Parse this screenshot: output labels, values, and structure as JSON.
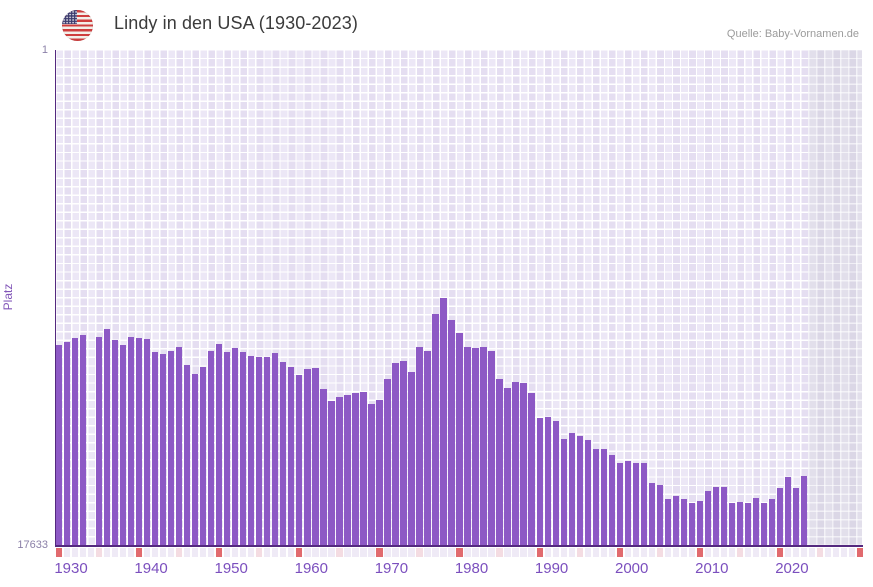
{
  "header": {
    "title": "Lindy in den USA (1930-2023)",
    "source": "Quelle: Baby-Vornamen.de",
    "flag_icon": "us-flag-round"
  },
  "colors": {
    "bar": "#8d59c5",
    "axis_line": "#54297f",
    "plot_background": "#ece7f6",
    "no_data_background": "#e2dfeb",
    "tick_decade": "#e16a6e",
    "tick_half_decade": "#f4dce2",
    "tick_normal": "#efeaf6",
    "x_label_color": "#7b4fbe",
    "y_label_color": "#8b80a8",
    "title_color": "#3b3b3b"
  },
  "chart_data": {
    "type": "bar",
    "title": "Lindy in den USA (1930-2023)",
    "xlabel": "",
    "ylabel": "Platz",
    "y_axis": {
      "inverted": true,
      "min": 1,
      "max": 17633,
      "top_label": "1",
      "bottom_label": "17633"
    },
    "x_axis": {
      "data_start_year": 1930,
      "data_end_year": 2023,
      "axis_end_year": 2030,
      "tick_labels": [
        "1930",
        "1940",
        "1950",
        "1960",
        "1970",
        "1980",
        "1990",
        "2000",
        "2010",
        "2020"
      ]
    },
    "no_data_band": {
      "from": 2024,
      "to": 2030
    },
    "missing_years": [
      1934
    ],
    "legend": "none",
    "grid": "on",
    "points": [
      [
        1930,
        10500
      ],
      [
        1931,
        10390
      ],
      [
        1932,
        10250
      ],
      [
        1933,
        10140
      ],
      [
        1934,
        null
      ],
      [
        1935,
        10215
      ],
      [
        1936,
        9930
      ],
      [
        1937,
        10320
      ],
      [
        1938,
        10500
      ],
      [
        1939,
        10215
      ],
      [
        1940,
        10250
      ],
      [
        1941,
        10285
      ],
      [
        1942,
        10750
      ],
      [
        1943,
        10820
      ],
      [
        1944,
        10710
      ],
      [
        1945,
        10570
      ],
      [
        1946,
        11210
      ],
      [
        1947,
        11530
      ],
      [
        1948,
        11280
      ],
      [
        1949,
        10710
      ],
      [
        1950,
        10460
      ],
      [
        1951,
        10750
      ],
      [
        1952,
        10605
      ],
      [
        1953,
        10750
      ],
      [
        1954,
        10890
      ],
      [
        1955,
        10925
      ],
      [
        1956,
        10925
      ],
      [
        1957,
        10785
      ],
      [
        1958,
        11100
      ],
      [
        1959,
        11280
      ],
      [
        1960,
        11565
      ],
      [
        1961,
        11350
      ],
      [
        1962,
        11315
      ],
      [
        1963,
        12065
      ],
      [
        1964,
        12490
      ],
      [
        1965,
        12350
      ],
      [
        1966,
        12280
      ],
      [
        1967,
        12205
      ],
      [
        1968,
        12170
      ],
      [
        1969,
        12600
      ],
      [
        1970,
        12455
      ],
      [
        1971,
        11710
      ],
      [
        1972,
        11140
      ],
      [
        1973,
        11070
      ],
      [
        1974,
        11460
      ],
      [
        1975,
        10570
      ],
      [
        1976,
        10710
      ],
      [
        1977,
        9395
      ],
      [
        1978,
        8825
      ],
      [
        1979,
        9610
      ],
      [
        1980,
        10070
      ],
      [
        1981,
        10570
      ],
      [
        1982,
        10605
      ],
      [
        1983,
        10570
      ],
      [
        1984,
        10710
      ],
      [
        1985,
        11710
      ],
      [
        1986,
        12030
      ],
      [
        1987,
        11815
      ],
      [
        1988,
        11850
      ],
      [
        1989,
        12205
      ],
      [
        1990,
        13095
      ],
      [
        1991,
        13060
      ],
      [
        1992,
        13200
      ],
      [
        1993,
        13845
      ],
      [
        1994,
        13630
      ],
      [
        1995,
        13735
      ],
      [
        1996,
        13880
      ],
      [
        1997,
        14200
      ],
      [
        1998,
        14200
      ],
      [
        1999,
        14410
      ],
      [
        2000,
        14695
      ],
      [
        2001,
        14625
      ],
      [
        2002,
        14695
      ],
      [
        2003,
        14695
      ],
      [
        2004,
        15410
      ],
      [
        2005,
        15480
      ],
      [
        2006,
        15980
      ],
      [
        2007,
        15870
      ],
      [
        2008,
        15980
      ],
      [
        2009,
        16120
      ],
      [
        2010,
        16050
      ],
      [
        2011,
        15695
      ],
      [
        2012,
        15550
      ],
      [
        2013,
        15550
      ],
      [
        2014,
        16120
      ],
      [
        2015,
        16085
      ],
      [
        2016,
        16120
      ],
      [
        2017,
        15945
      ],
      [
        2018,
        16120
      ],
      [
        2019,
        15980
      ],
      [
        2020,
        15590
      ],
      [
        2021,
        15195
      ],
      [
        2022,
        15590
      ],
      [
        2023,
        15160
      ]
    ]
  }
}
